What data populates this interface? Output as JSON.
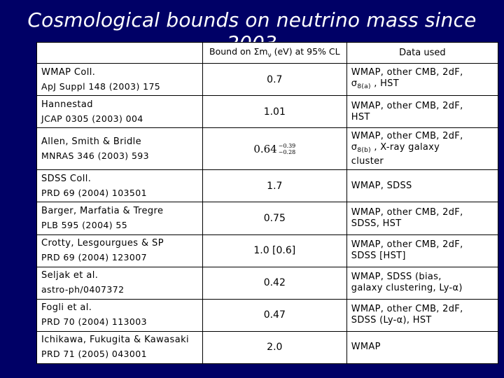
{
  "title": "Cosmological bounds on neutrino mass since 2003",
  "table": {
    "headers": {
      "reference": "",
      "bound": "Bound on Σm",
      "bound_sub": "ν",
      "bound_tail": " (eV) at 95% CL",
      "data": "Data used"
    },
    "rows": [
      {
        "author": "WMAP Coll.",
        "cite": "ApJ Suppl 148 (2003) 175",
        "bound": "0.7",
        "data_line1": "WMAP, other CMB, 2dF,",
        "data_line2": "σ",
        "data_sub": "8(a)",
        "data_tail": " , HST",
        "data_line3": ""
      },
      {
        "author": "Hannestad",
        "cite": "JCAP 0305 (2003) 004",
        "bound": "1.01",
        "data_line1": "WMAP, other CMB, 2dF,",
        "data_line2": "HST",
        "data_sub": "",
        "data_tail": "",
        "data_line3": ""
      },
      {
        "author": "Allen, Smith & Bridle",
        "cite": "MNRAS 346 (2003) 593",
        "bound_main": "0.64",
        "bound_up": "−0.39",
        "bound_down": "−0.28",
        "data_line1": "WMAP, other CMB, 2dF,",
        "data_line2": "σ",
        "data_sub": "8(b)",
        "data_tail": " , X-ray galaxy",
        "data_line3": "cluster"
      },
      {
        "author": "SDSS Coll.",
        "cite": "PRD 69 (2004) 103501",
        "bound": "1.7",
        "data_line1": "WMAP, SDSS",
        "data_line2": "",
        "data_sub": "",
        "data_tail": "",
        "data_line3": ""
      },
      {
        "author": "Barger, Marfatia & Tregre",
        "cite": "PLB 595 (2004) 55",
        "bound": "0.75",
        "data_line1": "WMAP, other CMB, 2dF,",
        "data_line2": "SDSS, HST",
        "data_sub": "",
        "data_tail": "",
        "data_line3": ""
      },
      {
        "author": "Crotty, Lesgourgues & SP",
        "cite": "PRD 69 (2004) 123007",
        "bound": "1.0 [0.6]",
        "data_line1": "WMAP, other CMB, 2dF,",
        "data_line2": "SDSS [HST]",
        "data_sub": "",
        "data_tail": "",
        "data_line3": ""
      },
      {
        "author": "Seljak et al.",
        "cite": "astro-ph/0407372",
        "bound": "0.42",
        "data_line1": "WMAP, SDSS (bias,",
        "data_line2": "galaxy clustering, Ly-α)",
        "data_sub": "",
        "data_tail": "",
        "data_line3": ""
      },
      {
        "author": "Fogli et al.",
        "cite": "PRD 70 (2004) 113003",
        "bound": "0.47",
        "data_line1": "WMAP, other CMB, 2dF,",
        "data_line2": "SDSS (Ly-α), HST",
        "data_sub": "",
        "data_tail": "",
        "data_line3": ""
      },
      {
        "author": "Ichikawa, Fukugita & Kawasaki",
        "cite": "PRD 71 (2005) 043001",
        "bound": "2.0",
        "data_line1": "WMAP",
        "data_line2": "",
        "data_sub": "",
        "data_tail": "",
        "data_line3": ""
      }
    ]
  }
}
